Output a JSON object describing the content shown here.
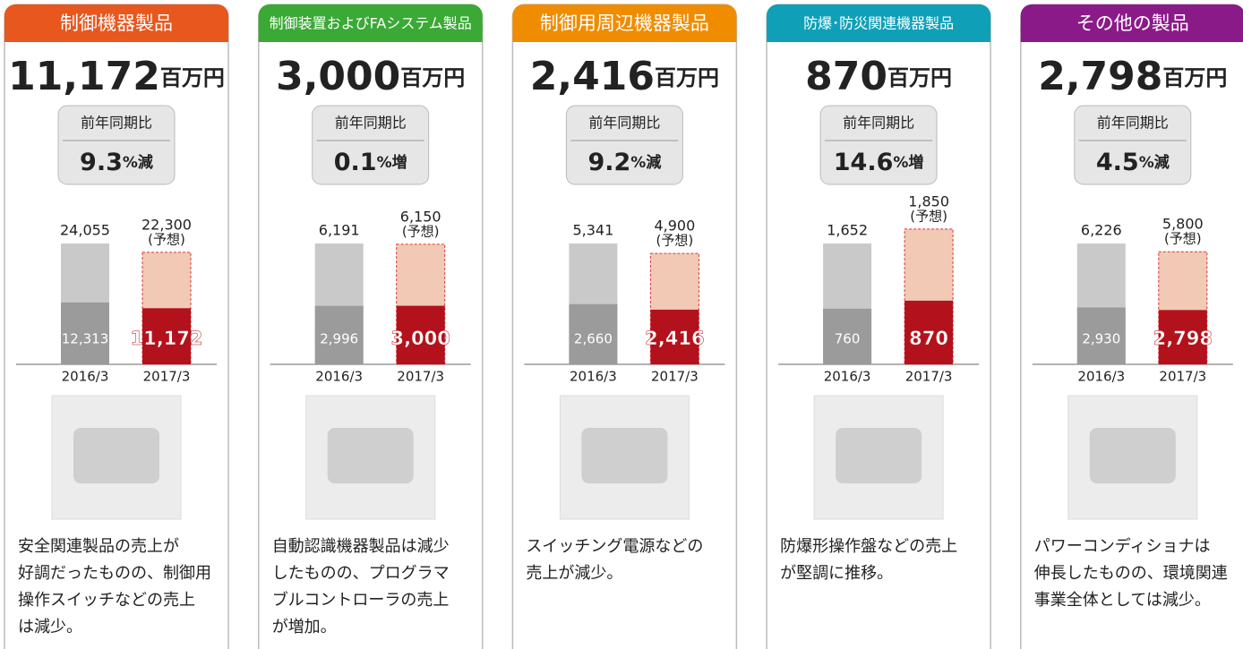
{
  "forecast_note": "(予想)",
  "panels": [
    {
      "title": "制御機器製品",
      "color": "#e8571e",
      "unit": "百万円",
      "yoy_label": "前年同期比",
      "change": "9.3",
      "change_unit": "%減",
      "chart": {
        "categories": [
          "2016/3",
          "2017/3"
        ],
        "full_year": {
          "values": [
            24055,
            22300
          ],
          "value_labels": [
            "24,055",
            "22,300"
          ]
        },
        "first_half": {
          "values": [
            12313,
            11172
          ],
          "value_labels": [
            "12,313",
            "11,172"
          ]
        }
      },
      "description": [
        "安全関連製品の売上が",
        "好調だったものの、制御用",
        "操作スイッチなどの売上",
        "は減少。"
      ]
    },
    {
      "title": "制御装置およびFAシステム製品",
      "color": "#3aa935",
      "unit": "百万円",
      "yoy_label": "前年同期比",
      "change": "0.1",
      "change_unit": "%増",
      "chart": {
        "categories": [
          "2016/3",
          "2017/3"
        ],
        "full_year": {
          "values": [
            6191,
            6150
          ],
          "value_labels": [
            "6,191",
            "6,150"
          ]
        },
        "first_half": {
          "values": [
            2996,
            3000
          ],
          "value_labels": [
            "2,996",
            "3,000"
          ]
        }
      },
      "description": [
        "自動認識機器製品は減少",
        "したものの、プログラマ",
        "ブルコントローラの売上",
        "が増加。"
      ]
    },
    {
      "title": "制御用周辺機器製品",
      "color": "#f08c00",
      "unit": "百万円",
      "yoy_label": "前年同期比",
      "change": "9.2",
      "change_unit": "%減",
      "chart": {
        "categories": [
          "2016/3",
          "2017/3"
        ],
        "full_year": {
          "values": [
            5341,
            4900
          ],
          "value_labels": [
            "5,341",
            "4,900"
          ]
        },
        "first_half": {
          "values": [
            2660,
            2416
          ],
          "value_labels": [
            "2,660",
            "2,416"
          ]
        }
      },
      "description": [
        "スイッチング電源などの",
        "売上が減少。"
      ]
    },
    {
      "title": "防爆･防災関連機器製品",
      "color": "#0fa0b8",
      "unit": "百万円",
      "yoy_label": "前年同期比",
      "change": "14.6",
      "change_unit": "%増",
      "chart": {
        "categories": [
          "2016/3",
          "2017/3"
        ],
        "full_year": {
          "values": [
            1652,
            1850
          ],
          "value_labels": [
            "1,652",
            "1,850"
          ]
        },
        "first_half": {
          "values": [
            760,
            870
          ],
          "value_labels": [
            "760",
            "870"
          ]
        }
      },
      "description": [
        "防爆形操作盤などの売上",
        "が堅調に推移。"
      ]
    },
    {
      "title": "その他の製品",
      "color": "#8b1a89",
      "unit": "百万円",
      "yoy_label": "前年同期比",
      "change": "4.5",
      "change_unit": "%減",
      "chart": {
        "categories": [
          "2016/3",
          "2017/3"
        ],
        "full_year": {
          "values": [
            6226,
            5800
          ],
          "value_labels": [
            "6,226",
            "5,800"
          ]
        },
        "first_half": {
          "values": [
            2930,
            2798
          ],
          "value_labels": [
            "2,930",
            "2,798"
          ]
        }
      },
      "description": [
        "パワーコンディショナは",
        "伸長したものの、環境関連",
        "事業全体としては減少。"
      ]
    }
  ]
}
